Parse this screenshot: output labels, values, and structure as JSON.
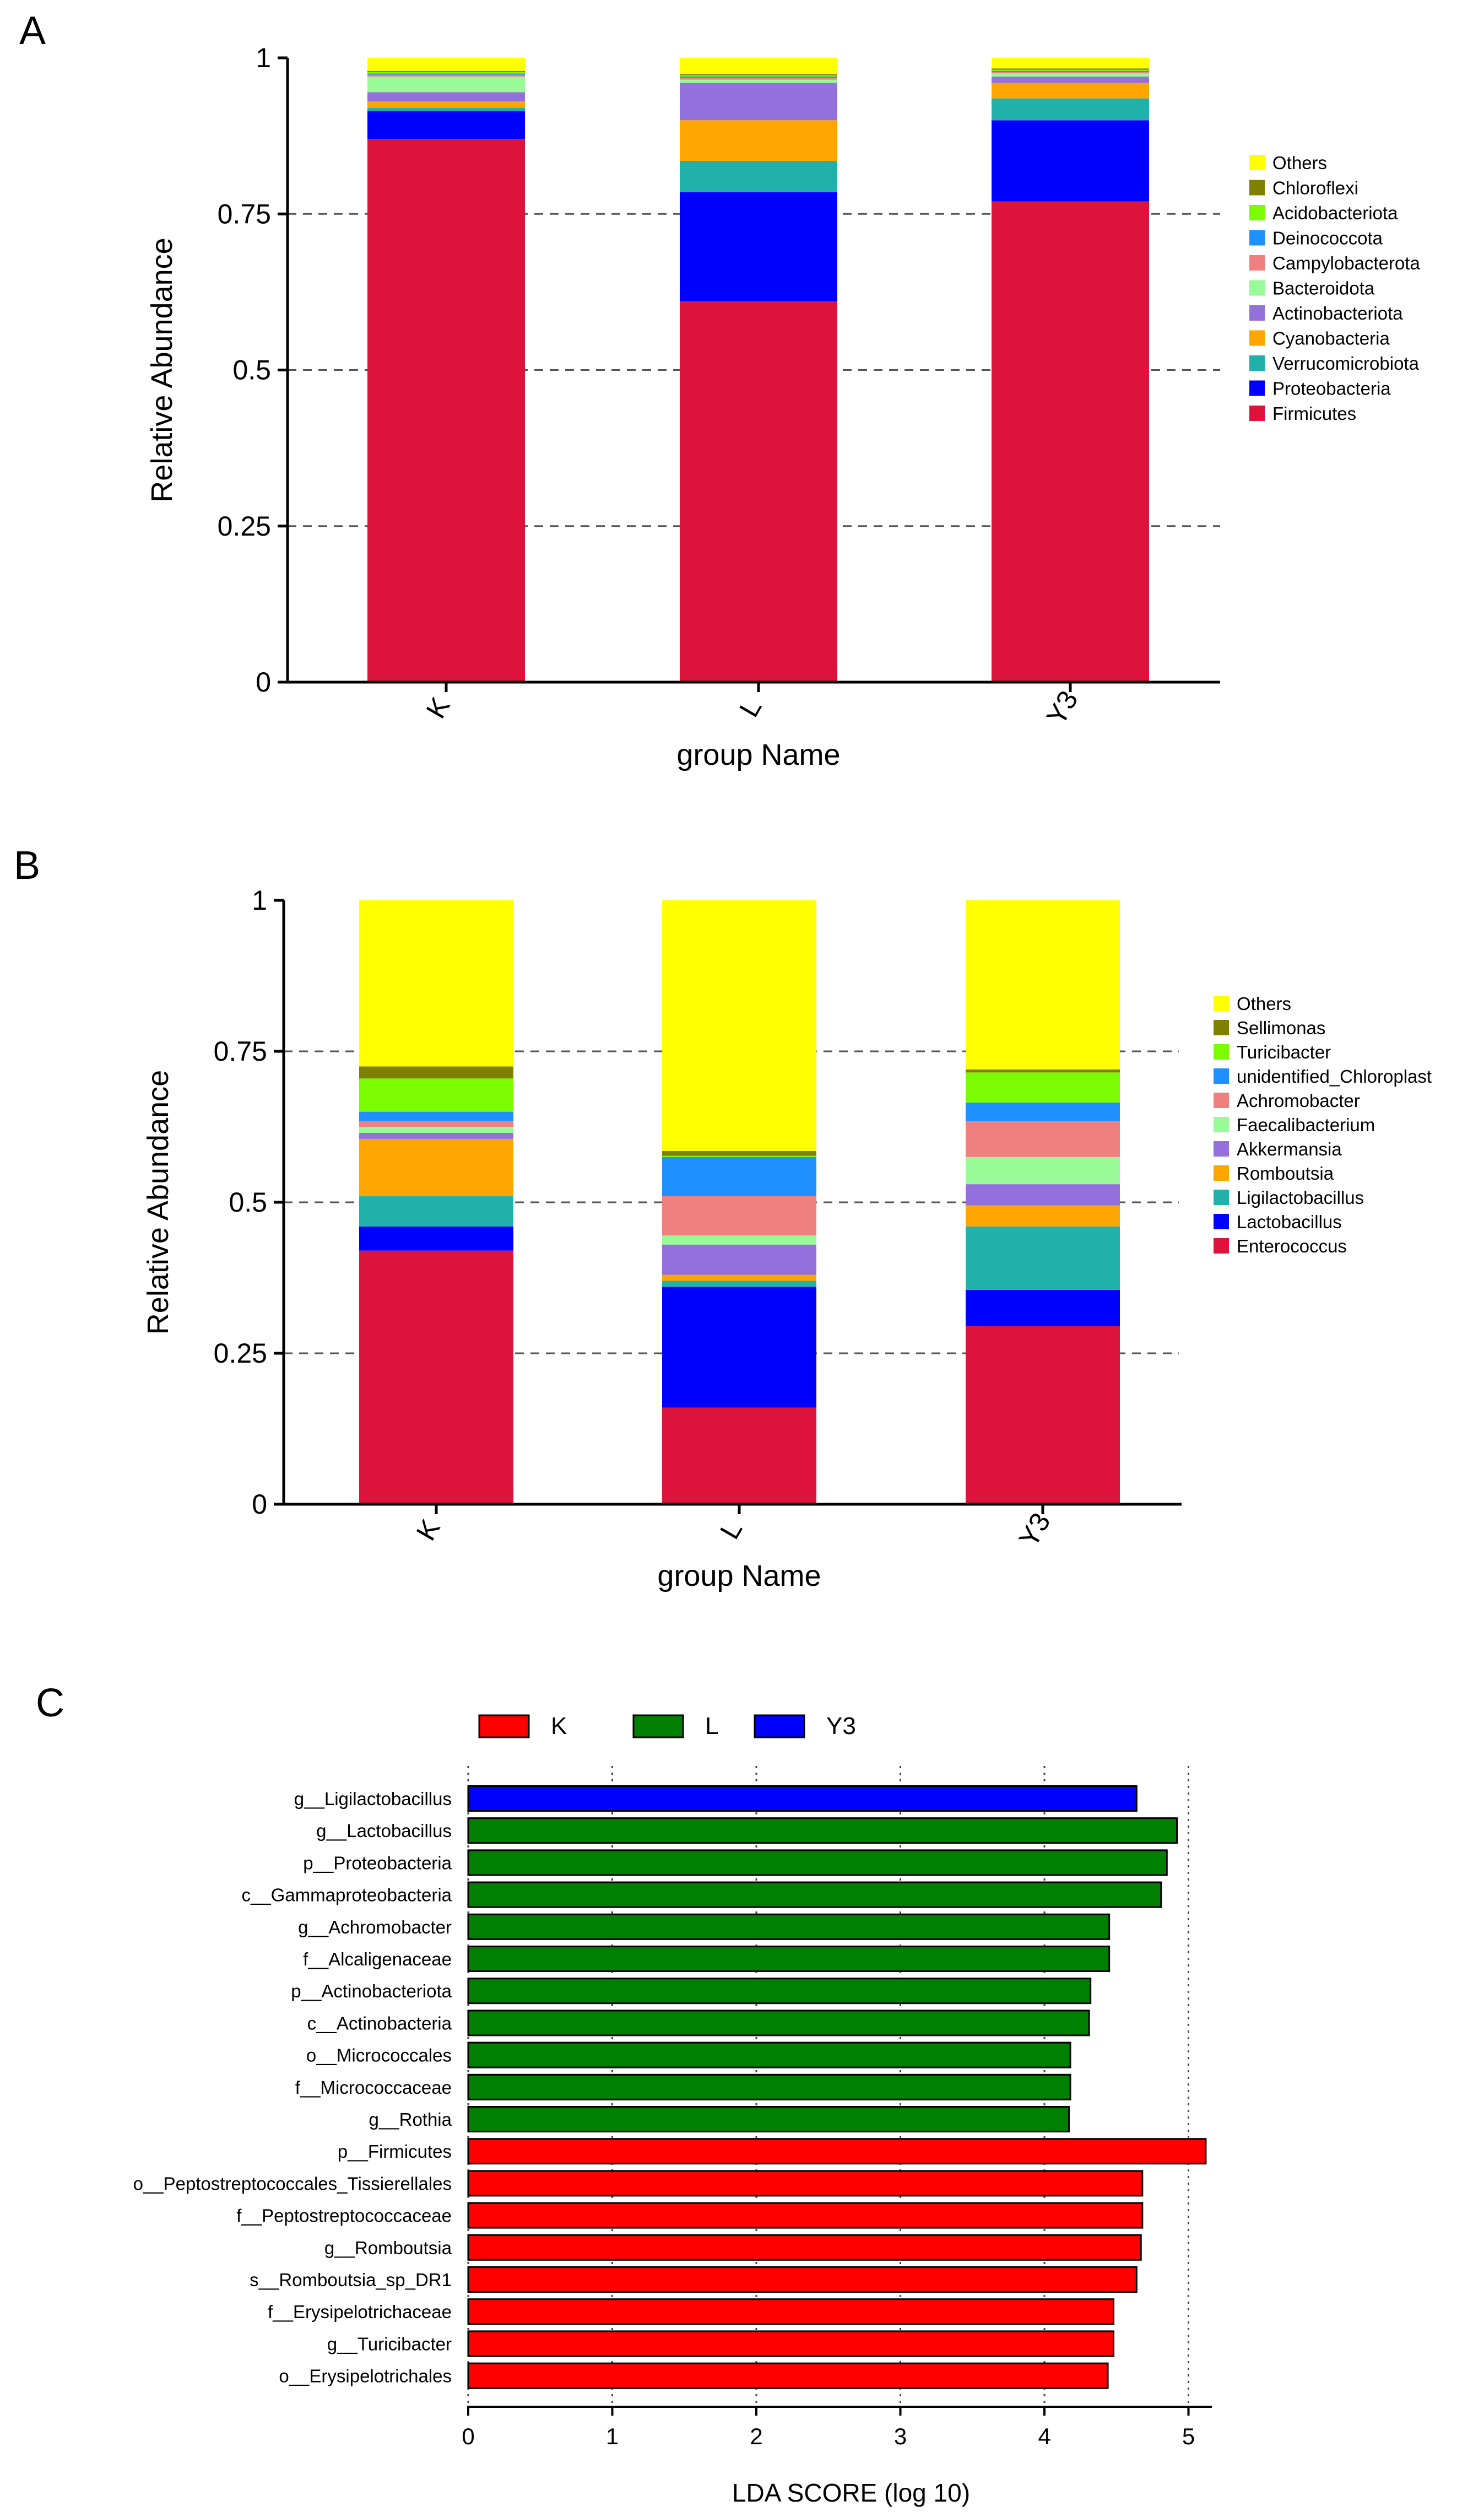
{
  "panels": {
    "a": {
      "letter": "A"
    },
    "b": {
      "letter": "B"
    },
    "c": {
      "letter": "C"
    }
  },
  "chart_data": [
    {
      "id": "A",
      "type": "bar",
      "stacked": true,
      "title": "",
      "xlabel": "group Name",
      "ylabel": "Relative Abundance",
      "ylim": [
        0,
        1
      ],
      "yticks": [
        0,
        0.25,
        0.5,
        0.75,
        1
      ],
      "ytick_labels": [
        "0",
        "0.25",
        "0.5",
        "0.75",
        "1"
      ],
      "gridlines": [
        0.25,
        0.5,
        0.75
      ],
      "legend_position": "right",
      "categories": [
        "K",
        "L",
        "Y3"
      ],
      "series": [
        {
          "name": "Firmicutes",
          "color": "#DC143C",
          "values": [
            0.87,
            0.61,
            0.77
          ]
        },
        {
          "name": "Proteobacteria",
          "color": "#0000FF",
          "values": [
            0.045,
            0.175,
            0.13
          ]
        },
        {
          "name": "Verrucomicrobiota",
          "color": "#20B2AA",
          "values": [
            0.005,
            0.05,
            0.035
          ]
        },
        {
          "name": "Cyanobacteria",
          "color": "#FFA500",
          "values": [
            0.01,
            0.065,
            0.025
          ]
        },
        {
          "name": "Actinobacteriota",
          "color": "#9370DB",
          "values": [
            0.015,
            0.06,
            0.01
          ]
        },
        {
          "name": "Bacteroidota",
          "color": "#98FB98",
          "values": [
            0.025,
            0.005,
            0.005
          ]
        },
        {
          "name": "Campylobacterota",
          "color": "#F08080",
          "values": [
            0.003,
            0.003,
            0.002
          ]
        },
        {
          "name": "Deinococcota",
          "color": "#1E90FF",
          "values": [
            0.002,
            0.002,
            0.002
          ]
        },
        {
          "name": "Acidobacteriota",
          "color": "#7CFC00",
          "values": [
            0.002,
            0.002,
            0.002
          ]
        },
        {
          "name": "Chloroflexi",
          "color": "#808000",
          "values": [
            0.002,
            0.002,
            0.002
          ]
        },
        {
          "name": "Others",
          "color": "#FFFF00",
          "values": [
            0.021,
            0.026,
            0.017
          ]
        }
      ]
    },
    {
      "id": "B",
      "type": "bar",
      "stacked": true,
      "title": "",
      "xlabel": "group Name",
      "ylabel": "Relative Abundance",
      "ylim": [
        0,
        1
      ],
      "yticks": [
        0,
        0.25,
        0.5,
        0.75,
        1
      ],
      "ytick_labels": [
        "0",
        "0.25",
        "0.5",
        "0.75",
        "1"
      ],
      "gridlines": [
        0.25,
        0.5,
        0.75
      ],
      "legend_position": "right",
      "categories": [
        "K",
        "L",
        "Y3"
      ],
      "series": [
        {
          "name": "Enterococcus",
          "color": "#DC143C",
          "values": [
            0.42,
            0.16,
            0.295
          ]
        },
        {
          "name": "Lactobacillus",
          "color": "#0000FF",
          "values": [
            0.04,
            0.2,
            0.06
          ]
        },
        {
          "name": "Ligilactobacillus",
          "color": "#20B2AA",
          "values": [
            0.05,
            0.01,
            0.105
          ]
        },
        {
          "name": "Romboutsia",
          "color": "#FFA500",
          "values": [
            0.095,
            0.01,
            0.035
          ]
        },
        {
          "name": "Akkermansia",
          "color": "#9370DB",
          "values": [
            0.01,
            0.05,
            0.035
          ]
        },
        {
          "name": "Faecalibacterium",
          "color": "#98FB98",
          "values": [
            0.01,
            0.015,
            0.045
          ]
        },
        {
          "name": "Achromobacter",
          "color": "#F08080",
          "values": [
            0.01,
            0.065,
            0.06
          ]
        },
        {
          "name": "unidentified_Chloroplast",
          "color": "#1E90FF",
          "values": [
            0.015,
            0.065,
            0.03
          ]
        },
        {
          "name": "Turicibacter",
          "color": "#7CFC00",
          "values": [
            0.055,
            0.002,
            0.05
          ]
        },
        {
          "name": "Sellimonas",
          "color": "#808000",
          "values": [
            0.02,
            0.008,
            0.005
          ]
        },
        {
          "name": "Others",
          "color": "#FFFF00",
          "values": [
            0.275,
            0.415,
            0.28
          ]
        }
      ]
    },
    {
      "id": "C",
      "type": "bar",
      "orientation": "horizontal",
      "title": "",
      "xlabel": "LDA SCORE (log 10)",
      "ylabel": "",
      "xlim": [
        0,
        5.2
      ],
      "xticks": [
        0,
        1,
        2,
        3,
        4,
        5
      ],
      "xtick_labels": [
        "0",
        "1",
        "2",
        "3",
        "4",
        "5"
      ],
      "gridlines": [
        0,
        1,
        2,
        3,
        4,
        5
      ],
      "legend_position": "top",
      "groups": [
        {
          "name": "K",
          "color": "#FF0000"
        },
        {
          "name": "L",
          "color": "#008000"
        },
        {
          "name": "Y3",
          "color": "#0000FF"
        }
      ],
      "bars": [
        {
          "label": "g__Ligilactobacillus",
          "group": "Y3",
          "value": 4.64
        },
        {
          "label": "g__Lactobacillus",
          "group": "L",
          "value": 4.92
        },
        {
          "label": "p__Proteobacteria",
          "group": "L",
          "value": 4.85
        },
        {
          "label": "c__Gammaproteobacteria",
          "group": "L",
          "value": 4.81
        },
        {
          "label": "g__Achromobacter",
          "group": "L",
          "value": 4.45
        },
        {
          "label": "f__Alcaligenaceae",
          "group": "L",
          "value": 4.45
        },
        {
          "label": "p__Actinobacteriota",
          "group": "L",
          "value": 4.32
        },
        {
          "label": "c__Actinobacteria",
          "group": "L",
          "value": 4.31
        },
        {
          "label": "o__Micrococcales",
          "group": "L",
          "value": 4.18
        },
        {
          "label": "f__Micrococcaceae",
          "group": "L",
          "value": 4.18
        },
        {
          "label": "g__Rothia",
          "group": "L",
          "value": 4.17
        },
        {
          "label": "p__Firmicutes",
          "group": "K",
          "value": 5.12
        },
        {
          "label": "o__Peptostreptococcales_Tissierellales",
          "group": "K",
          "value": 4.68
        },
        {
          "label": "f__Peptostreptococcaceae",
          "group": "K",
          "value": 4.68
        },
        {
          "label": "g__Romboutsia",
          "group": "K",
          "value": 4.67
        },
        {
          "label": "s__Romboutsia_sp_DR1",
          "group": "K",
          "value": 4.64
        },
        {
          "label": "f__Erysipelotrichaceae",
          "group": "K",
          "value": 4.48
        },
        {
          "label": "g__Turicibacter",
          "group": "K",
          "value": 4.48
        },
        {
          "label": "o__Erysipelotrichales",
          "group": "K",
          "value": 4.44
        }
      ]
    }
  ]
}
